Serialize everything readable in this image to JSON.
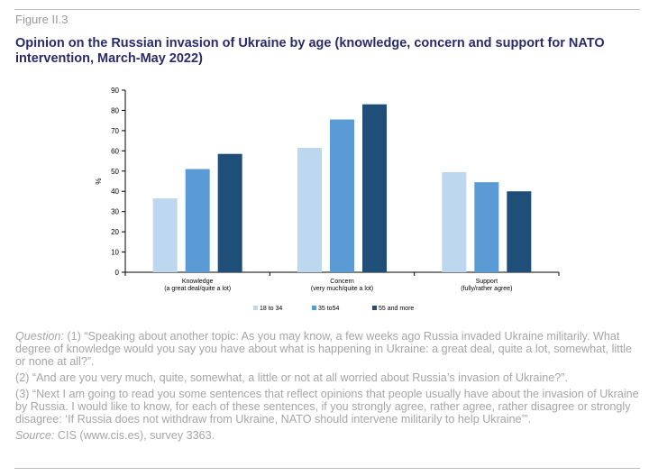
{
  "figure_label": "Figure II.3",
  "title": "Opinion on the Russian invasion of Ukraine by age (knowledge, concern and support for NATO intervention, March-May 2022)",
  "chart_data": {
    "type": "bar",
    "categories": [
      [
        "Knowledge",
        "(a great deal/quite a lot)"
      ],
      [
        "Concern",
        "(very much/quite a lot)"
      ],
      [
        "Support",
        "(fully/rather agree)"
      ]
    ],
    "series": [
      {
        "name": "18 to 34",
        "color": "#bdd7ee",
        "values": [
          36.5,
          61.5,
          49.5
        ]
      },
      {
        "name": "35 to54",
        "color": "#5b9bd5",
        "values": [
          51,
          75.5,
          44.5
        ]
      },
      {
        "name": "55 and more",
        "color": "#1f4e79",
        "values": [
          58.5,
          83,
          40
        ]
      }
    ],
    "ylabel": "%",
    "ylim": [
      0,
      90
    ],
    "yticks": [
      0,
      10,
      20,
      30,
      40,
      50,
      60,
      70,
      80,
      90
    ],
    "legend_position": "bottom"
  },
  "notes": {
    "question_label": "Question:",
    "q1": " (1) “Speaking about another topic: As you may know, a few weeks ago Russia invaded Ukraine militarily. What degree of knowledge would you say you have about what is happening in Ukraine: a great deal, quite a lot, somewhat, little or none at all?”.",
    "q2": "(2) “And are you very much, quite, somewhat, a little or not at all worried about Russia’s invasion of Ukraine?”.",
    "q3": "(3) “Next I am going to read you some sentences that reflect opinions that people usually have about the invasion of Ukraine by Russia. I would like to know, for each of these sentences, if you strongly agree, rather agree, rather disagree or strongly disagree: ‘If Russia does not withdraw from Ukraine, NATO should intervene militarily to help Ukraine’”.",
    "source_label": "Source:",
    "source": " CIS (www.cis.es), survey 3363."
  }
}
